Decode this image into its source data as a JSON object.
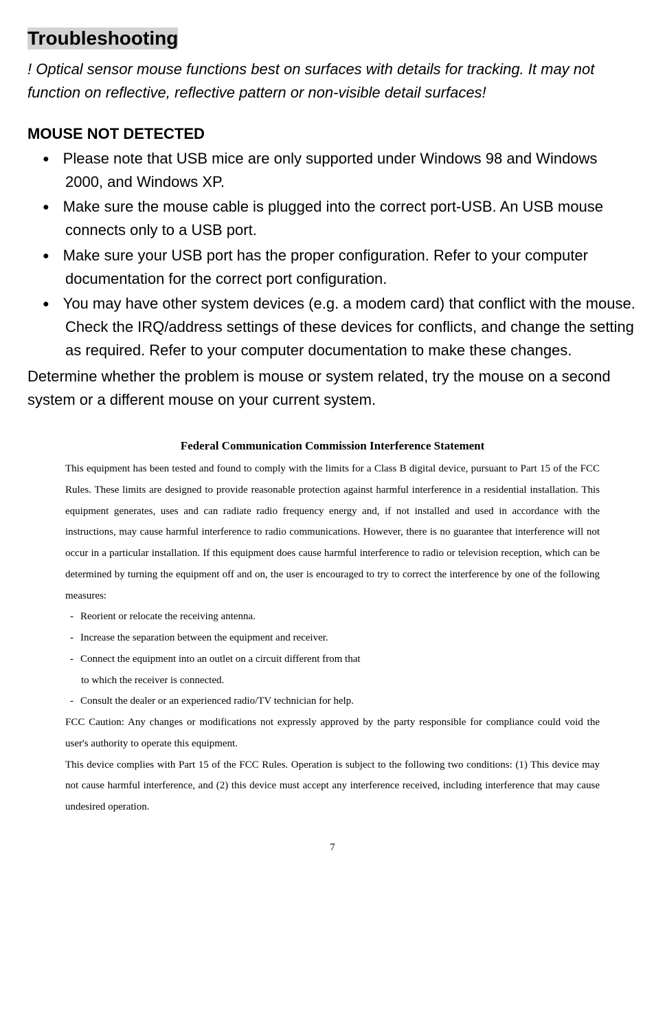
{
  "title": "Troubleshooting",
  "note": "! Optical sensor mouse functions best on surfaces with details for tracking. It may not function on reflective, reflective pattern or non-visible detail surfaces!",
  "subheading": "MOUSE NOT DETECTED",
  "bullets": [
    "Please note that USB mice are only supported under Windows 98 and Windows 2000, and Windows XP.",
    "Make sure the mouse cable is plugged into the correct port-USB. An USB mouse connects only to a USB port.",
    "Make sure your USB port has the proper configuration. Refer to your computer documentation for the correct port configuration.",
    "You may have other system devices (e.g. a modem card) that conflict with the mouse. Check the IRQ/address settings of these devices for conflicts, and change the setting as required. Refer to your computer documentation to make these changes."
  ],
  "after_bullets": "Determine whether the problem is mouse or system related, try the mouse on a second system or a different mouse on your current system.",
  "fcc": {
    "title": "Federal Communication Commission Interference Statement",
    "para1": "This equipment has been tested and found to comply with the limits for a Class B digital device, pursuant to Part 15 of the FCC Rules.  These limits are designed to provide reasonable protection against harmful interference in a residential installation.  This equipment generates, uses and can radiate radio frequency energy and, if not installed and used in accordance with the instructions, may cause harmful interference to radio communications.  However, there is no guarantee that interference will not occur in a particular installation.  If this equipment does cause harmful interference to radio or television reception, which can be determined by turning the equipment off and on, the user is encouraged to try to correct the interference by one of the following measures:",
    "items": [
      "Reorient or relocate the receiving antenna.",
      "Increase the separation between the equipment and receiver.",
      "Connect the equipment into an outlet on a circuit different from that",
      "to which the receiver is connected.",
      "Consult the dealer or an experienced radio/TV technician for help."
    ],
    "para2": "FCC Caution: Any changes or modifications not expressly approved by the party responsible for compliance could void the user's authority to operate this equipment.",
    "para3": "This device complies with Part 15 of the FCC Rules. Operation is subject to the following two conditions: (1) This device may not cause harmful interference, and (2) this device must accept any interference received, including interference that may cause undesired operation."
  },
  "pagenum": "7"
}
